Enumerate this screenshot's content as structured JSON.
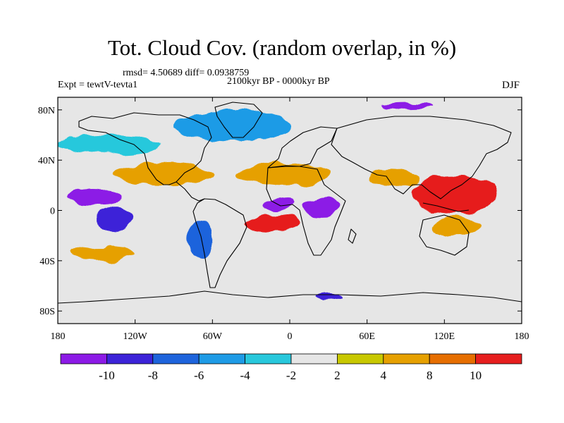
{
  "title": "Tot. Cloud Cov. (random overlap, in %)",
  "stats": "rmsd= 4.50689 diff= 0.0938759",
  "period": "2100kyr BP - 0000kyr BP",
  "experiment": "Expt = tewtV-tevta1",
  "season": "DJF",
  "x_ticks": [
    {
      "lon": -180,
      "label": "180"
    },
    {
      "lon": -120,
      "label": "120W"
    },
    {
      "lon": -60,
      "label": "60W"
    },
    {
      "lon": 0,
      "label": "0"
    },
    {
      "lon": 60,
      "label": "60E"
    },
    {
      "lon": 120,
      "label": "120E"
    },
    {
      "lon": 180,
      "label": "180"
    }
  ],
  "y_ticks": [
    {
      "lat": 80,
      "label": "80N"
    },
    {
      "lat": 40,
      "label": "40N"
    },
    {
      "lat": 0,
      "label": "0"
    },
    {
      "lat": -40,
      "label": "40S"
    },
    {
      "lat": -80,
      "label": "80S"
    }
  ],
  "map_extent": {
    "lon": [
      -180,
      180
    ],
    "lat": [
      -90,
      90
    ]
  },
  "colorbar": {
    "colors": [
      "#8c1ae6",
      "#3c23d8",
      "#1e64dc",
      "#1e9be6",
      "#28c8dc",
      "#e6e6e6",
      "#c8c800",
      "#e6a000",
      "#e66e00",
      "#e61e1e"
    ],
    "labels": [
      "-10",
      "-8",
      "-6",
      "-4",
      "-2",
      "2",
      "4",
      "8",
      "10"
    ]
  },
  "anomaly_regions": [
    {
      "lon": [
        -175,
        -130
      ],
      "lat": [
        4,
        16
      ],
      "level": 0
    },
    {
      "lon": [
        -150,
        -122
      ],
      "lat": [
        -16,
        3
      ],
      "level": 1
    },
    {
      "lon": [
        -135,
        -60
      ],
      "lat": [
        20,
        38
      ],
      "level": 7
    },
    {
      "lon": [
        -40,
        30
      ],
      "lat": [
        20,
        38
      ],
      "level": 7
    },
    {
      "lon": [
        60,
        100
      ],
      "lat": [
        18,
        34
      ],
      "level": 7
    },
    {
      "lon": [
        -35,
        8
      ],
      "lat": [
        -16,
        -4
      ],
      "level": 9
    },
    {
      "lon": [
        -20,
        2
      ],
      "lat": [
        0,
        10
      ],
      "level": 0
    },
    {
      "lon": [
        10,
        40
      ],
      "lat": [
        -5,
        10
      ],
      "level": 0
    },
    {
      "lon": [
        95,
        160
      ],
      "lat": [
        -2,
        28
      ],
      "level": 9
    },
    {
      "lon": [
        110,
        150
      ],
      "lat": [
        -20,
        -5
      ],
      "level": 7
    },
    {
      "lon": [
        -170,
        -120
      ],
      "lat": [
        -40,
        -30
      ],
      "level": 7
    },
    {
      "lon": [
        -90,
        0
      ],
      "lat": [
        55,
        80
      ],
      "level": 3
    },
    {
      "lon": [
        -80,
        -60
      ],
      "lat": [
        -38,
        -8
      ],
      "level": 2
    },
    {
      "lon": [
        20,
        40
      ],
      "lat": [
        -72,
        -66
      ],
      "level": 1
    },
    {
      "lon": [
        70,
        110
      ],
      "lat": [
        80,
        86
      ],
      "level": 0
    },
    {
      "lon": [
        -180,
        -100
      ],
      "lat": [
        45,
        60
      ],
      "level": 4
    }
  ]
}
